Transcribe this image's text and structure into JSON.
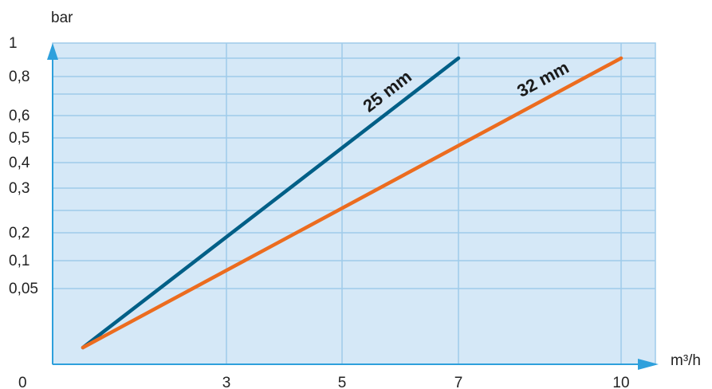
{
  "chart_data": {
    "type": "line",
    "xlabel": "m³/h",
    "ylabel": "bar",
    "x_origin_label": "0",
    "y_ticks": [
      {
        "label": "1",
        "value": 1.0
      },
      {
        "label": "0,8",
        "value": 0.8
      },
      {
        "label": "0,6",
        "value": 0.6
      },
      {
        "label": "0,5",
        "value": 0.5
      },
      {
        "label": "0,4",
        "value": 0.4
      },
      {
        "label": "0,3",
        "value": 0.3
      },
      {
        "label": "0,2",
        "value": 0.2
      },
      {
        "label": "0,1",
        "value": 0.1
      },
      {
        "label": "0,05",
        "value": 0.05
      }
    ],
    "y_gridlines": [
      0.9,
      0.8,
      0.7,
      0.6,
      0.5,
      0.4,
      0.3,
      0.25,
      0.2,
      0.1,
      0.05
    ],
    "x_ticks": [
      {
        "label": "3",
        "value": 3
      },
      {
        "label": "5",
        "value": 5
      },
      {
        "label": "7",
        "value": 7
      },
      {
        "label": "10",
        "value": 10
      }
    ],
    "series": [
      {
        "name": "25 mm",
        "color": "#005f87",
        "points": [
          [
            0.5,
            0.0
          ],
          [
            7,
            0.9
          ]
        ]
      },
      {
        "name": "32 mm",
        "color": "#ec6c1f",
        "points": [
          [
            0.5,
            0.0
          ],
          [
            10,
            0.9
          ]
        ]
      }
    ],
    "grid": true,
    "background_color": "#d5e8f7",
    "grid_color": "#9fcbea",
    "axis_color": "#2ea0dc"
  }
}
